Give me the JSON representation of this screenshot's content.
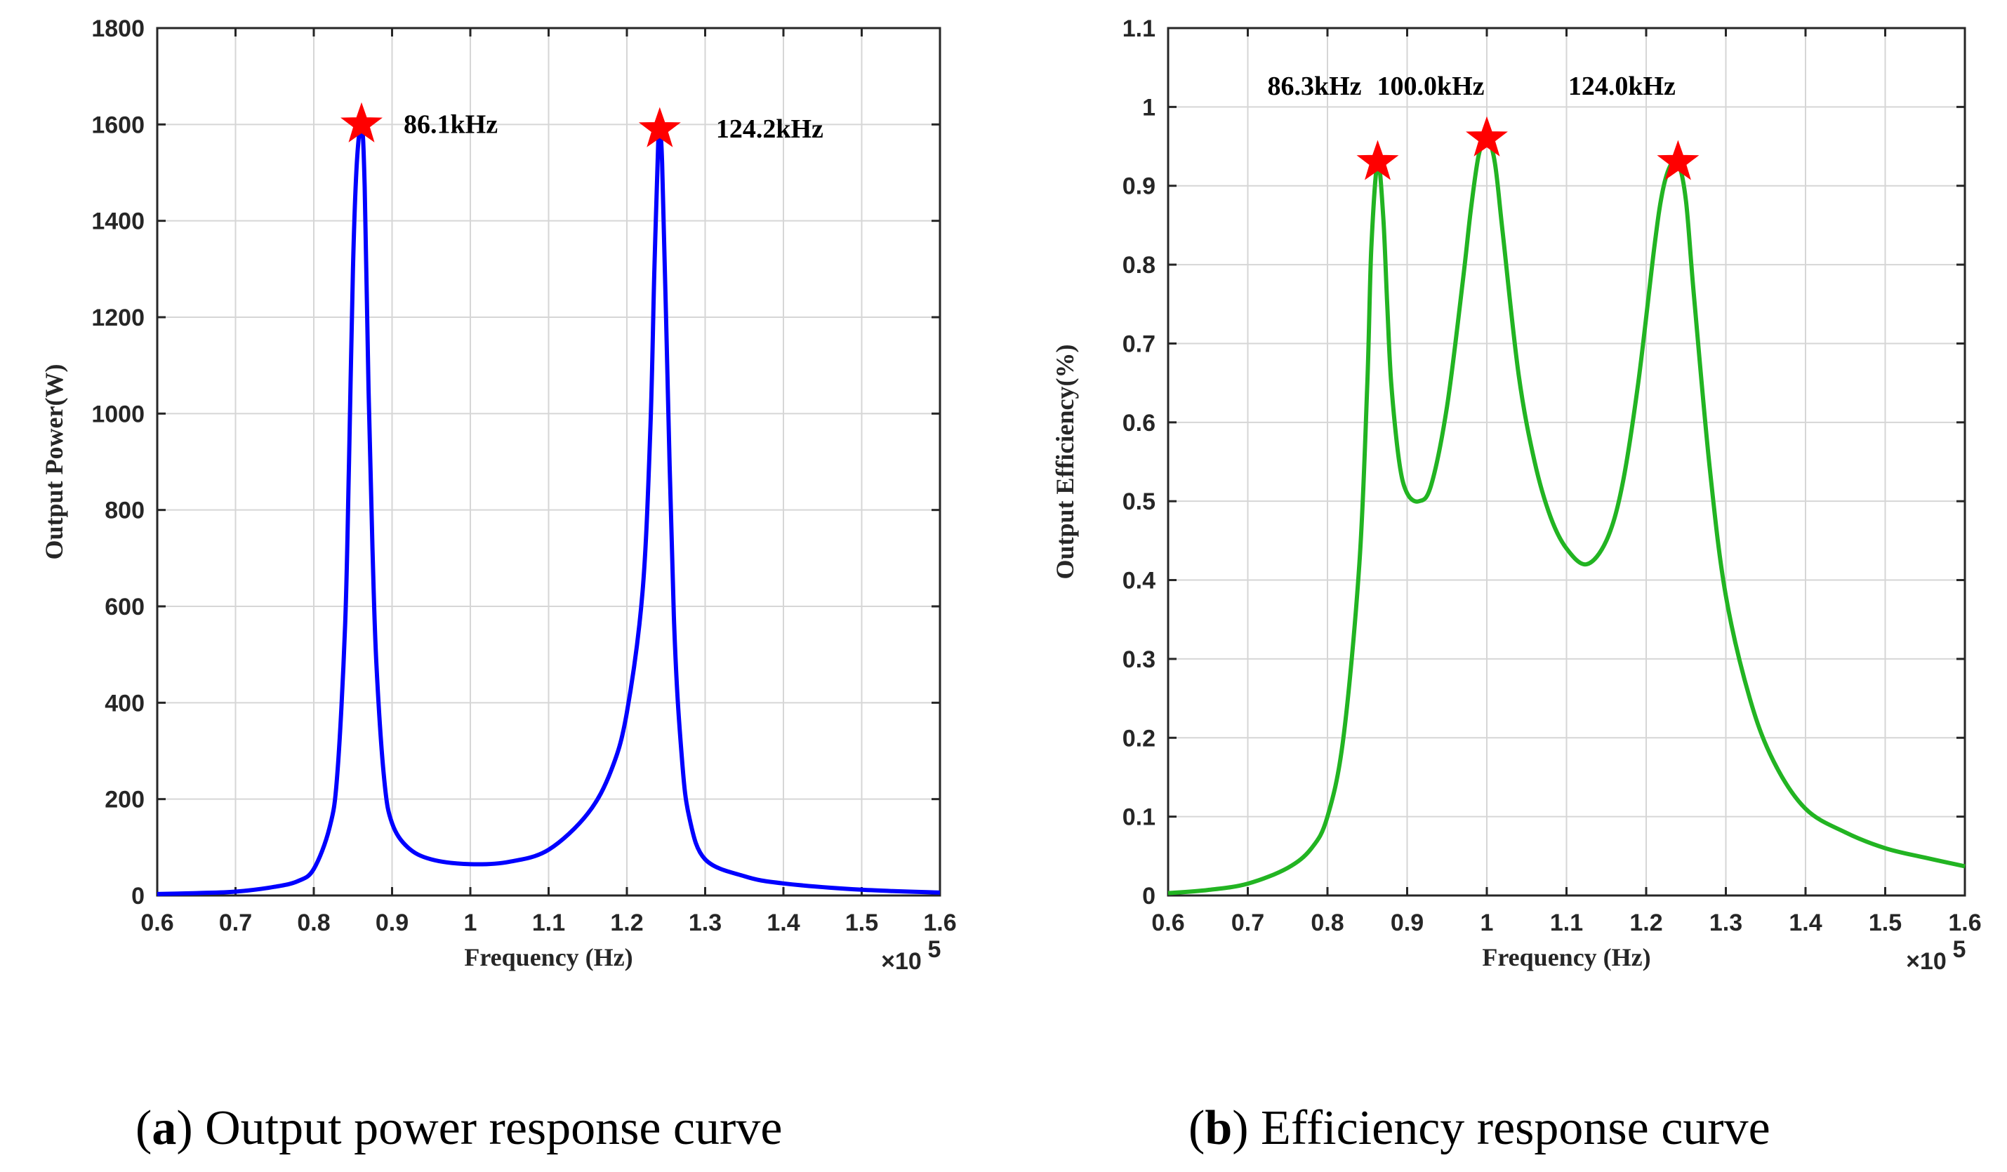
{
  "chart_data": [
    {
      "id": "a",
      "type": "line",
      "xlabel": "Frequency (Hz)",
      "ylabel": "Output Power(W)",
      "x_multiplier_label": "×10",
      "x_multiplier_exp": "5",
      "xlim": [
        0.6,
        1.6
      ],
      "ylim": [
        0,
        1800
      ],
      "xticks": [
        "0.6",
        "0.7",
        "0.8",
        "0.9",
        "1",
        "1.1",
        "1.2",
        "1.3",
        "1.4",
        "1.5",
        "1.6"
      ],
      "yticks": [
        "0",
        "200",
        "400",
        "600",
        "800",
        "1000",
        "1200",
        "1400",
        "1600",
        "1800"
      ],
      "grid": true,
      "line_color": "#0000ff",
      "marker_color": "#ff0000",
      "series": [
        {
          "name": "Output power",
          "x": [
            0.6,
            0.65,
            0.7,
            0.75,
            0.78,
            0.8,
            0.82,
            0.83,
            0.84,
            0.845,
            0.85,
            0.855,
            0.861,
            0.865,
            0.87,
            0.875,
            0.88,
            0.89,
            0.9,
            0.92,
            0.95,
            1.0,
            1.05,
            1.1,
            1.15,
            1.18,
            1.2,
            1.22,
            1.23,
            1.235,
            1.24,
            1.242,
            1.245,
            1.25,
            1.26,
            1.27,
            1.28,
            1.3,
            1.35,
            1.4,
            1.5,
            1.6
          ],
          "y": [
            3,
            5,
            8,
            18,
            30,
            55,
            140,
            250,
            560,
            900,
            1300,
            1520,
            1600,
            1470,
            1050,
            720,
            480,
            240,
            150,
            100,
            75,
            65,
            70,
            95,
            170,
            260,
            380,
            630,
            970,
            1290,
            1560,
            1590,
            1520,
            1200,
            580,
            290,
            160,
            75,
            40,
            25,
            12,
            6
          ]
        }
      ],
      "peaks": [
        {
          "x": 0.861,
          "y": 1600,
          "label": "86.1kHz"
        },
        {
          "x": 1.242,
          "y": 1590,
          "label": "124.2kHz"
        }
      ],
      "caption_letter": "a",
      "caption_text": ") Output power response curve"
    },
    {
      "id": "b",
      "type": "line",
      "xlabel": "Frequency (Hz)",
      "ylabel": "Output Efficiency(%)",
      "x_multiplier_label": "×10",
      "x_multiplier_exp": "5",
      "xlim": [
        0.6,
        1.6
      ],
      "ylim": [
        0,
        1.1
      ],
      "xticks": [
        "0.6",
        "0.7",
        "0.8",
        "0.9",
        "1",
        "1.1",
        "1.2",
        "1.3",
        "1.4",
        "1.5",
        "1.6"
      ],
      "yticks": [
        "0",
        "0.1",
        "0.2",
        "0.3",
        "0.4",
        "0.5",
        "0.6",
        "0.7",
        "0.8",
        "0.9",
        "1",
        "1.1"
      ],
      "grid": true,
      "line_color": "#22b422",
      "marker_color": "#ff0000",
      "series": [
        {
          "name": "Efficiency",
          "x": [
            0.6,
            0.65,
            0.7,
            0.75,
            0.78,
            0.8,
            0.82,
            0.84,
            0.85,
            0.855,
            0.863,
            0.87,
            0.875,
            0.88,
            0.89,
            0.9,
            0.915,
            0.93,
            0.95,
            0.97,
            0.98,
            0.99,
            1.0,
            1.01,
            1.02,
            1.04,
            1.06,
            1.08,
            1.1,
            1.125,
            1.15,
            1.17,
            1.19,
            1.21,
            1.22,
            1.23,
            1.24,
            1.25,
            1.26,
            1.28,
            1.3,
            1.33,
            1.36,
            1.4,
            1.45,
            1.5,
            1.55,
            1.6
          ],
          "y": [
            0.003,
            0.007,
            0.015,
            0.035,
            0.06,
            0.1,
            0.2,
            0.42,
            0.65,
            0.82,
            0.93,
            0.86,
            0.75,
            0.65,
            0.55,
            0.51,
            0.5,
            0.52,
            0.62,
            0.78,
            0.87,
            0.94,
            0.96,
            0.93,
            0.84,
            0.66,
            0.55,
            0.48,
            0.44,
            0.42,
            0.45,
            0.52,
            0.65,
            0.82,
            0.89,
            0.925,
            0.93,
            0.88,
            0.76,
            0.54,
            0.38,
            0.25,
            0.17,
            0.11,
            0.08,
            0.06,
            0.048,
            0.037
          ]
        }
      ],
      "peaks": [
        {
          "x": 0.863,
          "y": 0.93,
          "label": "86.3kHz"
        },
        {
          "x": 1.0,
          "y": 0.96,
          "label": "100.0kHz"
        },
        {
          "x": 1.24,
          "y": 0.93,
          "label": "124.0kHz"
        }
      ],
      "caption_letter": "b",
      "caption_text": ") Efficiency response curve"
    }
  ]
}
